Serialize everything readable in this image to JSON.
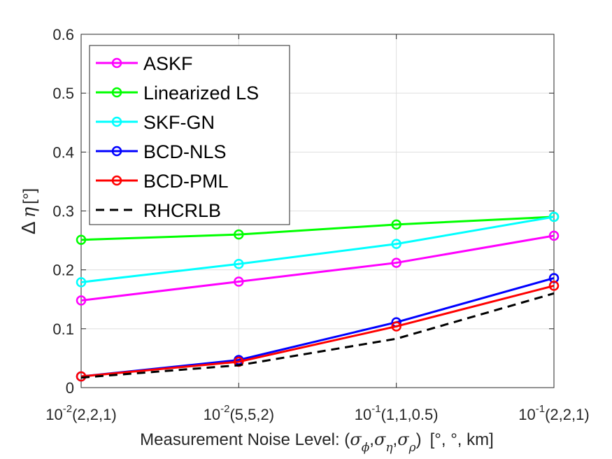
{
  "chart_data": {
    "type": "line",
    "title": "",
    "xlabel_prefix": "Measurement Noise Level: (",
    "xlabel_sigma": "σ",
    "xlabel_subs": [
      "ϕ",
      "η",
      "ρ"
    ],
    "xlabel_sep": ",",
    "xlabel_close": ")",
    "xlabel_units": "[°, °, km]",
    "ylabel_symbol": "Δ",
    "ylabel_var": "η",
    "ylabel_units": "[°]",
    "ylim": [
      0,
      0.6
    ],
    "yticks": [
      0,
      0.1,
      0.2,
      0.3,
      0.4,
      0.5,
      0.6
    ],
    "ytick_labels": [
      "0",
      "0.1",
      "0.2",
      "0.3",
      "0.4",
      "0.5",
      "0.6"
    ],
    "grid": true,
    "legend_position": "top-left",
    "categories": [
      {
        "base": "10",
        "exp": "-2",
        "rest": "(2,2,1)"
      },
      {
        "base": "10",
        "exp": "-2",
        "rest": "(5,5,2)"
      },
      {
        "base": "10",
        "exp": "-1",
        "rest": "(1,1,0.5)"
      },
      {
        "base": "10",
        "exp": "-1",
        "rest": "(2,2,1)"
      }
    ],
    "series": [
      {
        "name": "ASKF",
        "color": "#ff00ff",
        "marker": "circle",
        "dash": false,
        "values": [
          0.148,
          0.18,
          0.212,
          0.258
        ]
      },
      {
        "name": "Linearized LS",
        "color": "#00ff00",
        "marker": "circle",
        "dash": false,
        "values": [
          0.251,
          0.26,
          0.277,
          0.29
        ]
      },
      {
        "name": "SKF-GN",
        "color": "#00ffff",
        "marker": "circle",
        "dash": false,
        "values": [
          0.179,
          0.21,
          0.244,
          0.29
        ]
      },
      {
        "name": "BCD-NLS",
        "color": "#0000ff",
        "marker": "circle",
        "dash": false,
        "values": [
          0.019,
          0.047,
          0.111,
          0.186
        ]
      },
      {
        "name": "BCD-PML",
        "color": "#ff0000",
        "marker": "circle",
        "dash": false,
        "values": [
          0.019,
          0.044,
          0.104,
          0.173
        ]
      },
      {
        "name": "RHCRLB",
        "color": "#000000",
        "marker": "none",
        "dash": true,
        "values": [
          0.017,
          0.038,
          0.083,
          0.16
        ]
      }
    ]
  }
}
